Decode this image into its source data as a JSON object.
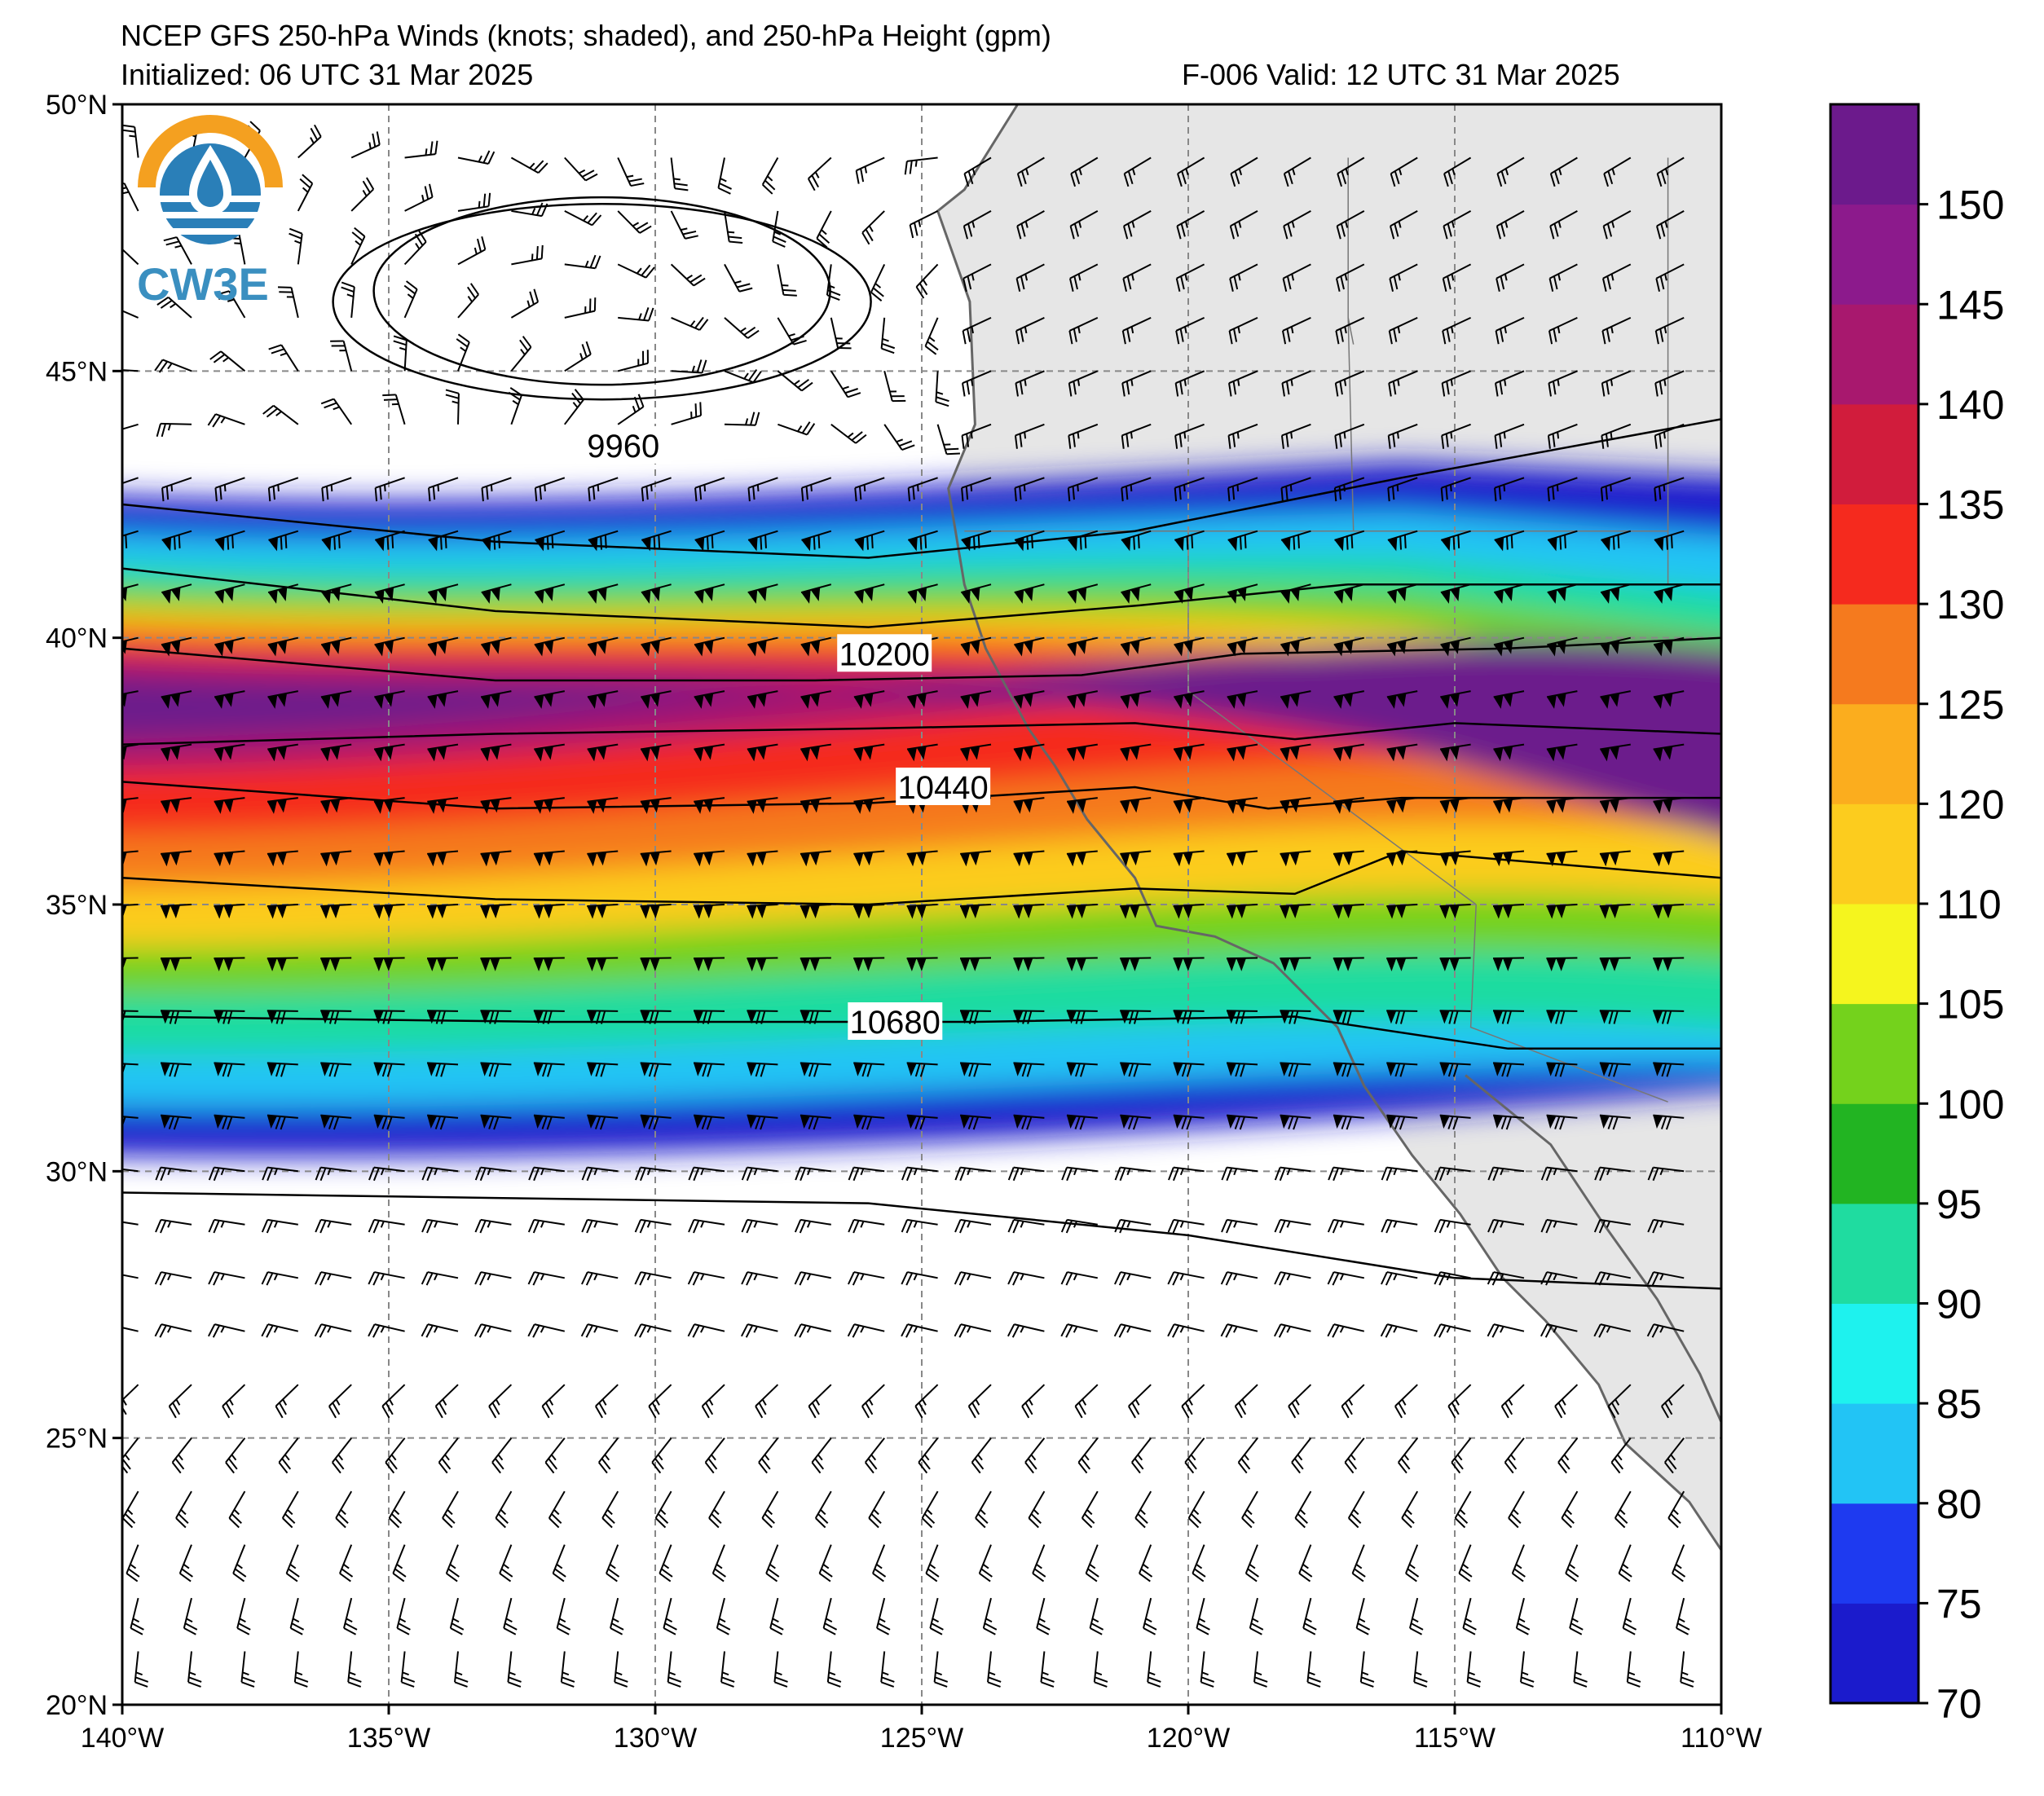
{
  "title": {
    "line1": "NCEP GFS 250-hPa Winds (knots; shaded), and 250-hPa Height (gpm)",
    "line2": "Initialized: 06 UTC 31 Mar 2025",
    "right": "F-006  Valid: 12 UTC 31 Mar 2025"
  },
  "logo": {
    "text": "CW3E"
  },
  "map": {
    "lon_range": [
      -140,
      -110
    ],
    "lat_range": [
      20,
      50
    ],
    "lon_ticks": [
      {
        "value": -140,
        "label": "140°W"
      },
      {
        "value": -135,
        "label": "135°W"
      },
      {
        "value": -130,
        "label": "130°W"
      },
      {
        "value": -125,
        "label": "125°W"
      },
      {
        "value": -120,
        "label": "120°W"
      },
      {
        "value": -115,
        "label": "115°W"
      },
      {
        "value": -110,
        "label": "110°W"
      }
    ],
    "lat_ticks": [
      {
        "value": 50,
        "label": "50°N"
      },
      {
        "value": 45,
        "label": "45°N"
      },
      {
        "value": 40,
        "label": "40°N"
      },
      {
        "value": 35,
        "label": "35°N"
      },
      {
        "value": 30,
        "label": "30°N"
      },
      {
        "value": 25,
        "label": "25°N"
      },
      {
        "value": 20,
        "label": "20°N"
      }
    ],
    "gridlines": true,
    "land_color": "#e6e6e6",
    "coast_color": "#666666",
    "height_contour_labels": [
      {
        "value": "9960",
        "lon": -130.6,
        "lat": 43.6
      },
      {
        "value": "10200",
        "lon": -125.7,
        "lat": 39.7
      },
      {
        "value": "10440",
        "lon": -124.6,
        "lat": 37.2
      },
      {
        "value": "10680",
        "lon": -125.5,
        "lat": 32.8
      }
    ]
  },
  "colorbar": {
    "ticks": [
      "70",
      "75",
      "80",
      "85",
      "90",
      "95",
      "100",
      "105",
      "110",
      "120",
      "125",
      "130",
      "135",
      "140",
      "145",
      "150"
    ],
    "colors": [
      "#1b1bcc",
      "#1e3af0",
      "#22c4f5",
      "#1ef2ee",
      "#1fdca0",
      "#22b422",
      "#74d21c",
      "#f5f51e",
      "#fccc1e",
      "#fbad1e",
      "#f57a1e",
      "#f52a1e",
      "#d11c3c",
      "#a8186e",
      "#8c1a8c",
      "#6c1a8c"
    ]
  }
}
